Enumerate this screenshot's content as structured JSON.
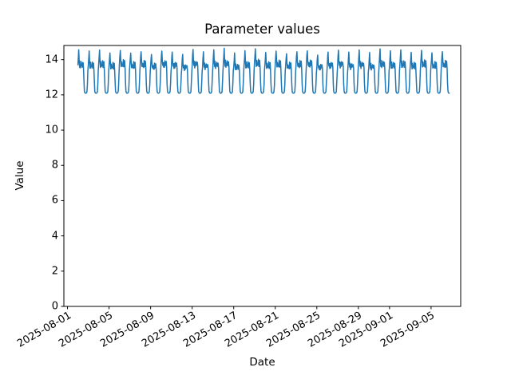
{
  "figure": {
    "background_color": "#ffffff",
    "line_color": "#1f77b4",
    "axes_color": "#000000",
    "grid": false,
    "legend": null
  },
  "chart_data": {
    "type": "line",
    "title": "Parameter values",
    "xlabel": "Date",
    "ylabel": "Value",
    "ylim": [
      0,
      14.8
    ],
    "xlim_days_offset": [
      -0.35,
      37.85
    ],
    "y_ticks": [
      0,
      2,
      4,
      6,
      8,
      10,
      12,
      14
    ],
    "x_ticks": [
      {
        "label": "2025-08-01",
        "day_offset": 0
      },
      {
        "label": "2025-08-05",
        "day_offset": 4
      },
      {
        "label": "2025-08-09",
        "day_offset": 8
      },
      {
        "label": "2025-08-13",
        "day_offset": 12
      },
      {
        "label": "2025-08-17",
        "day_offset": 16
      },
      {
        "label": "2025-08-21",
        "day_offset": 20
      },
      {
        "label": "2025-08-25",
        "day_offset": 24
      },
      {
        "label": "2025-08-29",
        "day_offset": 28
      },
      {
        "label": "2025-09-01",
        "day_offset": 31
      },
      {
        "label": "2025-09-05",
        "day_offset": 35
      }
    ],
    "series_start_date": "2025-08-02",
    "series_start_day_offset": 1,
    "sampling": "hourly",
    "days": 36,
    "last_day_end_hour": 18,
    "value_min": 12.1,
    "value_max": 14.55,
    "daily_profile_hours": [
      0,
      1,
      2,
      3,
      4,
      5,
      6,
      7,
      8,
      9,
      10,
      11,
      12,
      13,
      14,
      15,
      16,
      17,
      18,
      19,
      20,
      21,
      22,
      23
    ],
    "daily_profile_values": [
      13.7,
      14.15,
      14.5,
      13.9,
      13.6,
      13.85,
      13.55,
      13.75,
      13.6,
      13.9,
      13.6,
      13.75,
      13.85,
      13.5,
      12.7,
      12.2,
      12.12,
      12.1,
      12.1,
      12.1,
      12.12,
      12.18,
      12.6,
      13.3
    ],
    "day_peak_offsets": [
      0.0,
      -0.05,
      0.02,
      -0.12,
      0.05,
      -0.08,
      0.0,
      -0.15,
      0.03,
      -0.05,
      -0.2,
      0.05,
      -0.1,
      0.0,
      0.08,
      -0.18,
      -0.03,
      0.1,
      -0.08,
      0.02,
      -0.12,
      0.0,
      0.05,
      -0.2,
      -0.05,
      0.03,
      -0.1,
      0.0,
      -0.15,
      0.05,
      -0.05,
      0.02,
      -0.1,
      0.04,
      -0.08,
      0.0
    ],
    "jitter_amplitude": 0.06
  }
}
